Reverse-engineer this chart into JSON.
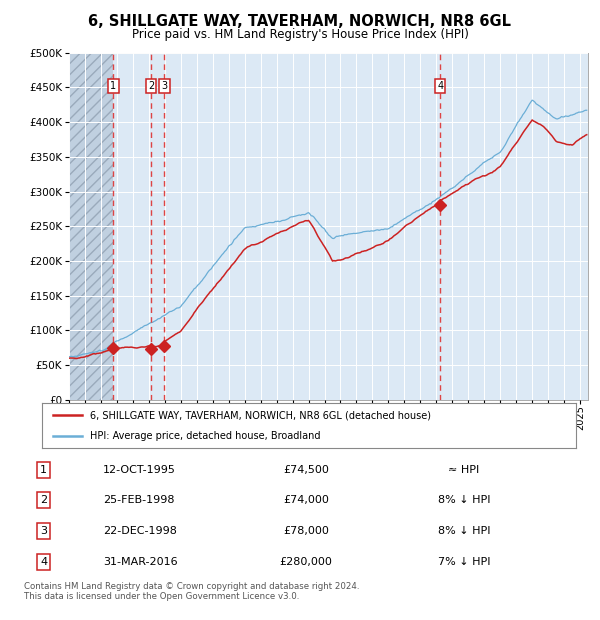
{
  "title": "6, SHILLGATE WAY, TAVERHAM, NORWICH, NR8 6GL",
  "subtitle": "Price paid vs. HM Land Registry's House Price Index (HPI)",
  "ylim": [
    0,
    500000
  ],
  "yticks": [
    0,
    50000,
    100000,
    150000,
    200000,
    250000,
    300000,
    350000,
    400000,
    450000,
    500000
  ],
  "xlim_start": 1993.0,
  "xlim_end": 2025.5,
  "plot_bg_color": "#dce9f5",
  "grid_color": "#ffffff",
  "hpi_color": "#6baed6",
  "price_color": "#cc2222",
  "dashed_line_color": "#dd4444",
  "sales": [
    {
      "label": 1,
      "date": 1995.78,
      "price": 74500
    },
    {
      "label": 2,
      "date": 1998.14,
      "price": 74000
    },
    {
      "label": 3,
      "date": 1998.97,
      "price": 78000
    },
    {
      "label": 4,
      "date": 2016.25,
      "price": 280000
    }
  ],
  "table_rows": [
    {
      "num": 1,
      "date": "12-OCT-1995",
      "price": "£74,500",
      "note": "≈ HPI"
    },
    {
      "num": 2,
      "date": "25-FEB-1998",
      "price": "£74,000",
      "note": "8% ↓ HPI"
    },
    {
      "num": 3,
      "date": "22-DEC-1998",
      "price": "£78,000",
      "note": "8% ↓ HPI"
    },
    {
      "num": 4,
      "date": "31-MAR-2016",
      "price": "£280,000",
      "note": "7% ↓ HPI"
    }
  ],
  "legend1_label": "6, SHILLGATE WAY, TAVERHAM, NORWICH, NR8 6GL (detached house)",
  "legend2_label": "HPI: Average price, detached house, Broadland",
  "footer": "Contains HM Land Registry data © Crown copyright and database right 2024.\nThis data is licensed under the Open Government Licence v3.0."
}
